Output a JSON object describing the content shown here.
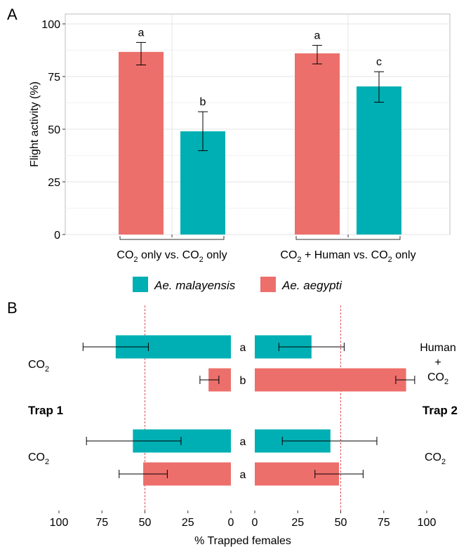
{
  "chart_data": [
    {
      "panel": "A",
      "type": "bar",
      "ylabel": "Flight activity (%)",
      "ylim": [
        0,
        100
      ],
      "yticks": [
        "0",
        "25",
        "50",
        "75",
        "100"
      ],
      "grid": true,
      "groups": [
        {
          "label_parts": [
            "CO",
            "2",
            " only vs. CO",
            "2",
            " only"
          ],
          "bars": [
            {
              "species": "Ae. aegypti",
              "value": 86.7,
              "err_low": 80.5,
              "err_high": 91.2,
              "letter": "a"
            },
            {
              "species": "Ae. malayensis",
              "value": 49.0,
              "err_low": 39.8,
              "err_high": 58.3,
              "letter": "b"
            }
          ]
        },
        {
          "label_parts": [
            "CO",
            "2",
            " + Human vs. CO",
            "2",
            " only"
          ],
          "bars": [
            {
              "species": "Ae. aegypti",
              "value": 86.0,
              "err_low": 81.0,
              "err_high": 89.8,
              "letter": "a"
            },
            {
              "species": "Ae. malayensis",
              "value": 70.3,
              "err_low": 62.8,
              "err_high": 77.3,
              "letter": "c"
            }
          ]
        }
      ]
    },
    {
      "panel": "B",
      "type": "bar",
      "orientation": "horizontal",
      "xlabel": "% Trapped females",
      "xlim": [
        0,
        100
      ],
      "xticks_left": [
        "100",
        "75",
        "50",
        "25",
        "0"
      ],
      "xticks_right": [
        "0",
        "25",
        "50",
        "75",
        "100"
      ],
      "reference_line": 50,
      "trap1_label": "Trap 1",
      "trap2_label": "Trap 2",
      "rows": [
        {
          "species": "Ae. malayensis",
          "trap1": 67,
          "trap1_err": [
            48,
            86
          ],
          "trap2": 33,
          "trap2_err": [
            14,
            52
          ],
          "letter": "a"
        },
        {
          "species": "Ae. aegypti",
          "trap1": 13,
          "trap1_err": [
            7,
            18
          ],
          "trap2": 88,
          "trap2_err": [
            82,
            93
          ],
          "letter": "b"
        },
        {
          "species": "Ae. malayensis",
          "trap1": 57,
          "trap1_err": [
            29,
            84
          ],
          "trap2": 44,
          "trap2_err": [
            16,
            71
          ],
          "letter": "a"
        },
        {
          "species": "Ae. aegypti",
          "trap1": 51,
          "trap1_err": [
            37,
            65
          ],
          "trap2": 49,
          "trap2_err": [
            35,
            63
          ],
          "letter": "a"
        }
      ],
      "left_labels": [
        {
          "parts": [
            "CO",
            "2"
          ]
        },
        {
          "parts": [
            "CO",
            "2"
          ]
        }
      ],
      "right_labels": [
        {
          "lines": [
            "Human",
            "+"
          ],
          "parts": [
            "CO",
            "2"
          ]
        },
        {
          "lines": [],
          "parts": [
            "CO",
            "2"
          ]
        }
      ]
    }
  ],
  "panel_labels": [
    "A",
    "B"
  ],
  "legend": [
    {
      "name": "Ae. malayensis",
      "color": "#00AFB3"
    },
    {
      "name": "Ae. aegypti",
      "color": "#ED6F6B"
    }
  ],
  "colors": {
    "Ae. malayensis": "#00AFB3",
    "Ae. aegypti": "#ED6F6B",
    "reference_line": "#e0505a",
    "grid": "#e6e6e6",
    "panel_border": "#bdbdbd"
  }
}
